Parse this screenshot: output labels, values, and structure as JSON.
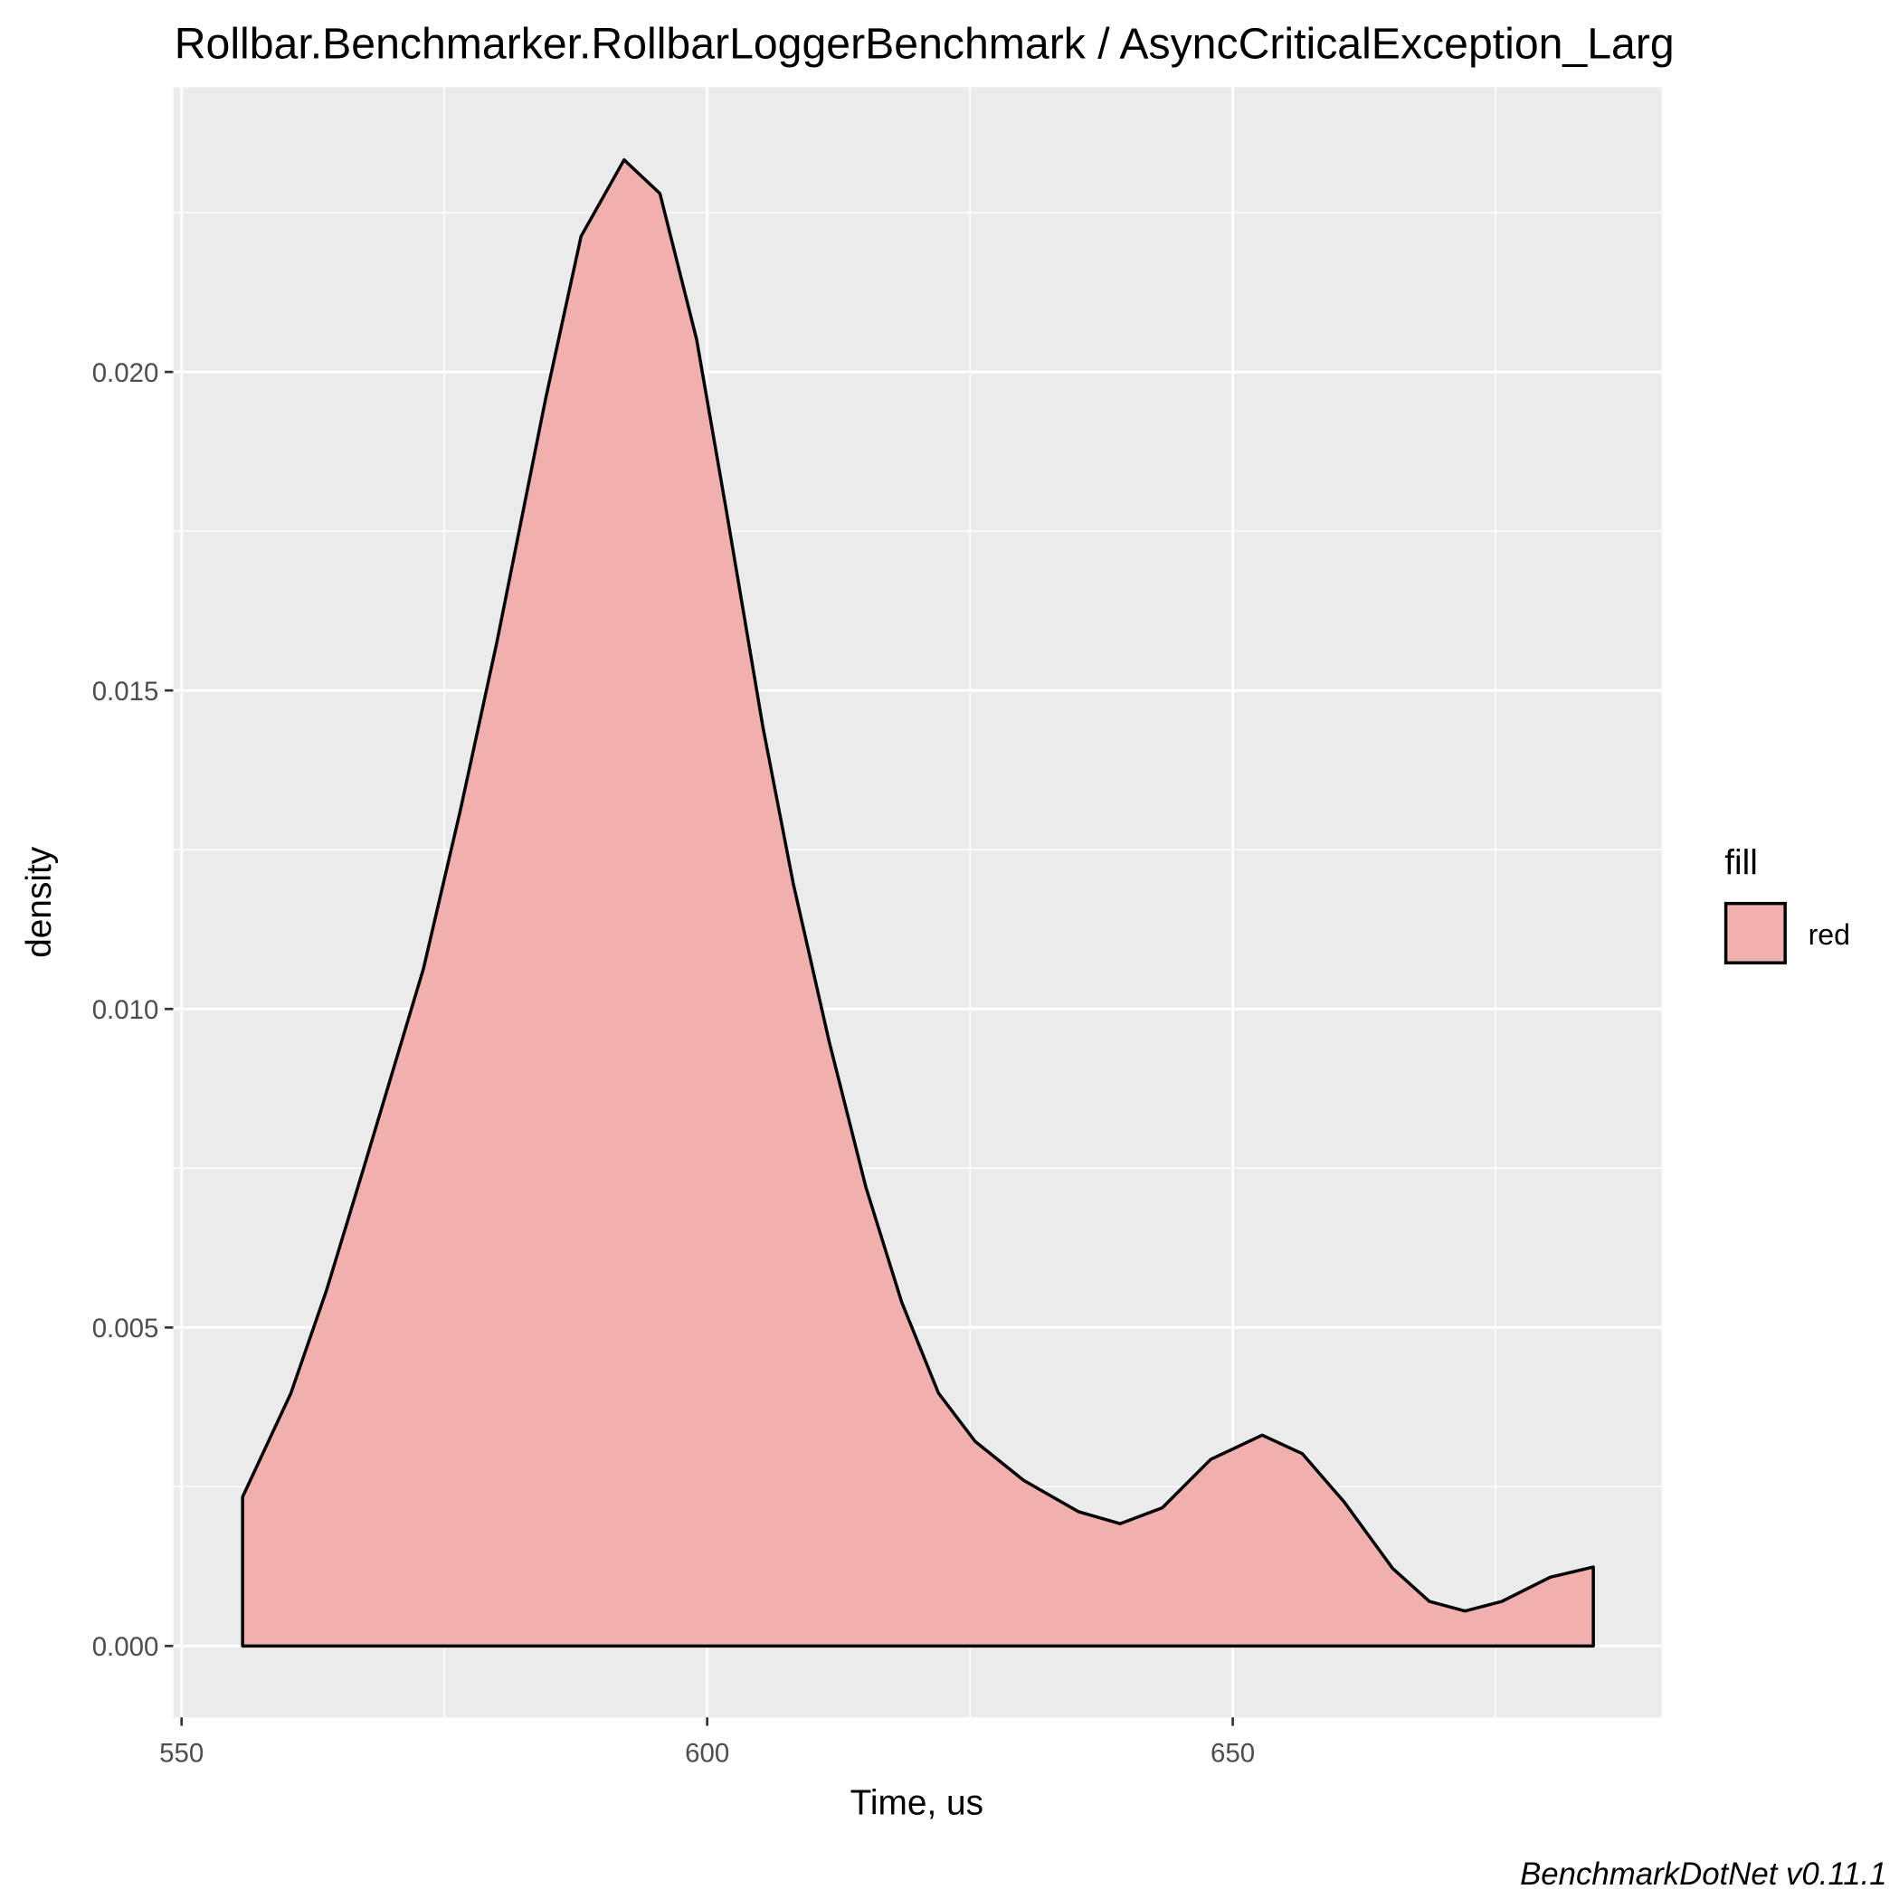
{
  "chart_data": {
    "type": "area",
    "title": "Rollbar.Benchmarker.RollbarLoggerBenchmark / AsyncCriticalException_Larg",
    "x_label": "Time, us",
    "y_label": "density",
    "caption": "BenchmarkDotNet v0.11.1",
    "legend_title": "fill",
    "legend_position": "right",
    "grid": true,
    "xlim": [
      549.2,
      690.8
    ],
    "ylim": [
      -0.00112,
      0.02447
    ],
    "xticks": [
      550,
      600,
      650
    ],
    "yticks": [
      {
        "value": 0,
        "label": "0.000"
      },
      {
        "value": 0.005,
        "label": "0.005"
      },
      {
        "value": 0.01,
        "label": "0.010"
      },
      {
        "value": 0.015,
        "label": "0.015"
      },
      {
        "value": 0.02,
        "label": "0.020"
      }
    ],
    "xminor": [
      575,
      625,
      675
    ],
    "yminor": [
      0.0025,
      0.0075,
      0.0125,
      0.0175,
      0.0225
    ],
    "x": [
      555.8,
      560.4,
      563.8,
      567.3,
      573.0,
      576.5,
      580.0,
      584.6,
      588.0,
      592.1,
      595.5,
      599.0,
      601.8,
      605.3,
      608.2,
      611.6,
      615.1,
      618.5,
      622.0,
      625.5,
      630.1,
      635.3,
      639.3,
      643.3,
      647.9,
      652.8,
      656.6,
      660.6,
      665.2,
      668.7,
      672.1,
      675.6,
      680.2,
      684.3
    ],
    "series": [
      {
        "name": "red",
        "color": "#F1B0AE",
        "values": [
          0.00234,
          0.00397,
          0.00559,
          0.00749,
          0.01063,
          0.0131,
          0.01576,
          0.01956,
          0.02213,
          0.02333,
          0.0228,
          0.02051,
          0.01785,
          0.01443,
          0.01196,
          0.00949,
          0.0072,
          0.0054,
          0.00397,
          0.00321,
          0.0026,
          0.00211,
          0.00192,
          0.00217,
          0.00293,
          0.00331,
          0.00302,
          0.00226,
          0.00122,
          0.0007,
          0.00055,
          0.0007,
          0.00108,
          0.00124
        ]
      }
    ]
  }
}
